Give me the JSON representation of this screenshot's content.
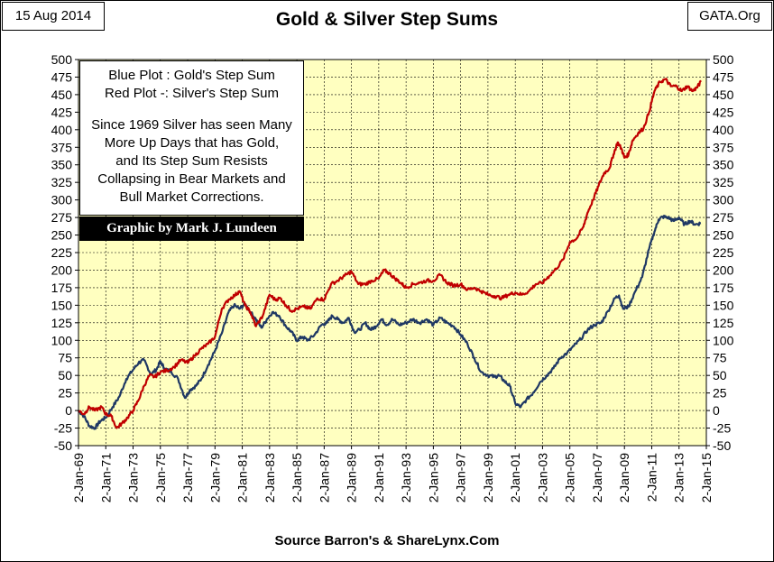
{
  "header": {
    "date": "15 Aug 2014",
    "title": "Gold & Silver Step Sums",
    "source_tag": "GATA.Org"
  },
  "legend": {
    "line1": "Blue Plot :  Gold's Step Sum",
    "line2": "Red Plot -:  Silver's Step Sum",
    "note1": "Since 1969 Silver has seen Many",
    "note2": "More Up Days that has Gold,",
    "note3": "and Its Step Sum Resists",
    "note4": "Collapsing in Bear Markets and",
    "note5": "Bull Market Corrections."
  },
  "credit": "Graphic by Mark J. Lundeen",
  "footer": {
    "source": "Source Barron's & ShareLynx.Com"
  },
  "colors": {
    "plot_background": "#ffffc0",
    "gold_series": "#1f3864",
    "silver_series": "#c00000",
    "grid": "#000000"
  },
  "chart_data": {
    "type": "line",
    "x_unit": "year",
    "xlim": [
      1969,
      2015
    ],
    "ylim": [
      -50,
      500
    ],
    "y_ticks": [
      -50,
      -25,
      0,
      25,
      50,
      75,
      100,
      125,
      150,
      175,
      200,
      225,
      250,
      275,
      300,
      325,
      350,
      375,
      400,
      425,
      450,
      475,
      500
    ],
    "x_tick_labels": [
      "2-Jan-69",
      "2-Jan-71",
      "2-Jan-73",
      "2-Jan-75",
      "2-Jan-77",
      "2-Jan-79",
      "2-Jan-81",
      "2-Jan-83",
      "2-Jan-85",
      "2-Jan-87",
      "2-Jan-89",
      "2-Jan-91",
      "2-Jan-93",
      "2-Jan-95",
      "2-Jan-97",
      "2-Jan-99",
      "2-Jan-01",
      "2-Jan-03",
      "2-Jan-05",
      "2-Jan-07",
      "2-Jan-09",
      "2-Jan-11",
      "2-Jan-13",
      "2-Jan-15"
    ],
    "grid": true,
    "series": [
      {
        "color": "#1f3864",
        "points": [
          [
            1969.0,
            0
          ],
          [
            1969.4,
            -8
          ],
          [
            1969.8,
            -22
          ],
          [
            1970.2,
            -25
          ],
          [
            1970.6,
            -15
          ],
          [
            1971.0,
            -10
          ],
          [
            1971.5,
            5
          ],
          [
            1972.0,
            20
          ],
          [
            1972.5,
            45
          ],
          [
            1973.0,
            58
          ],
          [
            1973.4,
            68
          ],
          [
            1973.8,
            72
          ],
          [
            1974.3,
            52
          ],
          [
            1974.7,
            58
          ],
          [
            1975.0,
            70
          ],
          [
            1975.3,
            60
          ],
          [
            1975.8,
            55
          ],
          [
            1976.3,
            45
          ],
          [
            1976.8,
            18
          ],
          [
            1977.2,
            30
          ],
          [
            1977.6,
            35
          ],
          [
            1978.0,
            45
          ],
          [
            1978.5,
            65
          ],
          [
            1979.0,
            85
          ],
          [
            1979.5,
            110
          ],
          [
            1980.0,
            140
          ],
          [
            1980.4,
            150
          ],
          [
            1980.8,
            145
          ],
          [
            1981.2,
            152
          ],
          [
            1981.6,
            140
          ],
          [
            1982.0,
            130
          ],
          [
            1982.4,
            118
          ],
          [
            1982.8,
            130
          ],
          [
            1983.2,
            140
          ],
          [
            1983.7,
            135
          ],
          [
            1984.2,
            120
          ],
          [
            1984.6,
            112
          ],
          [
            1985.0,
            100
          ],
          [
            1985.4,
            105
          ],
          [
            1985.8,
            100
          ],
          [
            1986.3,
            108
          ],
          [
            1986.8,
            122
          ],
          [
            1987.2,
            125
          ],
          [
            1987.6,
            135
          ],
          [
            1988.0,
            130
          ],
          [
            1988.4,
            125
          ],
          [
            1988.8,
            132
          ],
          [
            1989.2,
            112
          ],
          [
            1989.6,
            115
          ],
          [
            1990.0,
            125
          ],
          [
            1990.4,
            115
          ],
          [
            1990.8,
            120
          ],
          [
            1991.2,
            130
          ],
          [
            1991.6,
            122
          ],
          [
            1992.0,
            130
          ],
          [
            1992.5,
            122
          ],
          [
            1993.0,
            125
          ],
          [
            1993.5,
            130
          ],
          [
            1994.0,
            125
          ],
          [
            1994.5,
            130
          ],
          [
            1995.0,
            122
          ],
          [
            1995.5,
            132
          ],
          [
            1996.0,
            125
          ],
          [
            1996.5,
            120
          ],
          [
            1997.0,
            108
          ],
          [
            1997.5,
            95
          ],
          [
            1998.0,
            75
          ],
          [
            1998.5,
            55
          ],
          [
            1999.0,
            50
          ],
          [
            1999.5,
            48
          ],
          [
            1999.8,
            50
          ],
          [
            2000.2,
            42
          ],
          [
            2000.6,
            35
          ],
          [
            2001.0,
            10
          ],
          [
            2001.4,
            5
          ],
          [
            2001.8,
            15
          ],
          [
            2002.3,
            25
          ],
          [
            2002.8,
            40
          ],
          [
            2003.3,
            50
          ],
          [
            2003.8,
            60
          ],
          [
            2004.3,
            75
          ],
          [
            2004.8,
            82
          ],
          [
            2005.3,
            92
          ],
          [
            2005.8,
            102
          ],
          [
            2006.3,
            115
          ],
          [
            2006.8,
            122
          ],
          [
            2007.3,
            125
          ],
          [
            2007.8,
            142
          ],
          [
            2008.3,
            160
          ],
          [
            2008.6,
            164
          ],
          [
            2008.9,
            145
          ],
          [
            2009.3,
            148
          ],
          [
            2009.8,
            170
          ],
          [
            2010.3,
            190
          ],
          [
            2010.8,
            230
          ],
          [
            2011.2,
            255
          ],
          [
            2011.5,
            272
          ],
          [
            2011.8,
            276
          ],
          [
            2012.2,
            275
          ],
          [
            2012.6,
            270
          ],
          [
            2013.0,
            275
          ],
          [
            2013.4,
            265
          ],
          [
            2013.8,
            270
          ],
          [
            2014.2,
            265
          ],
          [
            2014.6,
            267
          ]
        ]
      },
      {
        "color": "#c00000",
        "points": [
          [
            1969.0,
            0
          ],
          [
            1969.4,
            -5
          ],
          [
            1969.8,
            5
          ],
          [
            1970.2,
            0
          ],
          [
            1970.7,
            5
          ],
          [
            1971.0,
            -5
          ],
          [
            1971.4,
            -8
          ],
          [
            1971.8,
            -25
          ],
          [
            1972.2,
            -18
          ],
          [
            1972.6,
            -10
          ],
          [
            1973.0,
            0
          ],
          [
            1973.4,
            15
          ],
          [
            1973.8,
            35
          ],
          [
            1974.2,
            50
          ],
          [
            1974.6,
            48
          ],
          [
            1975.0,
            55
          ],
          [
            1975.5,
            57
          ],
          [
            1976.0,
            62
          ],
          [
            1976.5,
            72
          ],
          [
            1977.0,
            68
          ],
          [
            1977.5,
            78
          ],
          [
            1978.0,
            88
          ],
          [
            1978.5,
            95
          ],
          [
            1979.0,
            105
          ],
          [
            1979.5,
            145
          ],
          [
            1980.0,
            158
          ],
          [
            1980.5,
            165
          ],
          [
            1980.8,
            170
          ],
          [
            1981.2,
            150
          ],
          [
            1981.6,
            140
          ],
          [
            1982.0,
            120
          ],
          [
            1982.5,
            135
          ],
          [
            1983.0,
            165
          ],
          [
            1983.4,
            158
          ],
          [
            1983.8,
            160
          ],
          [
            1984.2,
            150
          ],
          [
            1984.6,
            142
          ],
          [
            1985.0,
            145
          ],
          [
            1985.5,
            148
          ],
          [
            1986.0,
            145
          ],
          [
            1986.5,
            160
          ],
          [
            1987.0,
            158
          ],
          [
            1987.5,
            180
          ],
          [
            1988.0,
            185
          ],
          [
            1988.5,
            192
          ],
          [
            1989.0,
            198
          ],
          [
            1989.5,
            180
          ],
          [
            1990.0,
            180
          ],
          [
            1990.5,
            185
          ],
          [
            1991.0,
            188
          ],
          [
            1991.4,
            200
          ],
          [
            1991.8,
            195
          ],
          [
            1992.2,
            188
          ],
          [
            1992.6,
            182
          ],
          [
            1993.0,
            175
          ],
          [
            1993.5,
            180
          ],
          [
            1994.0,
            182
          ],
          [
            1994.5,
            185
          ],
          [
            1995.0,
            185
          ],
          [
            1995.5,
            193
          ],
          [
            1996.0,
            182
          ],
          [
            1996.5,
            178
          ],
          [
            1997.0,
            180
          ],
          [
            1997.5,
            172
          ],
          [
            1998.0,
            175
          ],
          [
            1998.5,
            170
          ],
          [
            1999.0,
            165
          ],
          [
            1999.5,
            163
          ],
          [
            2000.0,
            160
          ],
          [
            2000.5,
            165
          ],
          [
            2001.0,
            168
          ],
          [
            2001.5,
            165
          ],
          [
            2002.0,
            170
          ],
          [
            2002.5,
            180
          ],
          [
            2003.0,
            182
          ],
          [
            2003.5,
            192
          ],
          [
            2004.0,
            202
          ],
          [
            2004.5,
            215
          ],
          [
            2005.0,
            240
          ],
          [
            2005.5,
            245
          ],
          [
            2006.0,
            262
          ],
          [
            2006.3,
            282
          ],
          [
            2006.7,
            300
          ],
          [
            2007.1,
            320
          ],
          [
            2007.5,
            338
          ],
          [
            2007.9,
            345
          ],
          [
            2008.2,
            365
          ],
          [
            2008.5,
            382
          ],
          [
            2008.8,
            372
          ],
          [
            2009.0,
            360
          ],
          [
            2009.3,
            365
          ],
          [
            2009.6,
            385
          ],
          [
            2010.0,
            395
          ],
          [
            2010.4,
            402
          ],
          [
            2010.8,
            425
          ],
          [
            2011.2,
            455
          ],
          [
            2011.6,
            468
          ],
          [
            2012.0,
            472
          ],
          [
            2012.4,
            462
          ],
          [
            2012.8,
            462
          ],
          [
            2013.2,
            455
          ],
          [
            2013.6,
            462
          ],
          [
            2014.0,
            455
          ],
          [
            2014.3,
            460
          ],
          [
            2014.6,
            468
          ]
        ]
      }
    ]
  }
}
